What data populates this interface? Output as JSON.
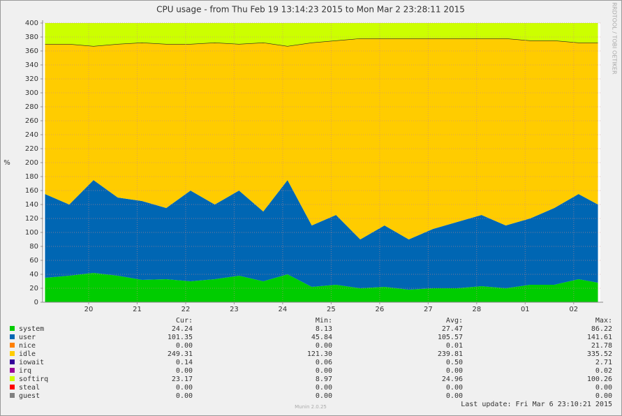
{
  "chart_data": {
    "type": "area",
    "title": "CPU usage - from Thu Feb 19 13:14:23 2015 to Mon Mar  2 23:28:11 2015",
    "y_label": "%",
    "side_text": "RRDTOOL / TOBI OETIKER",
    "footer": "Munin 2.0.25",
    "last_update": "Last update:  Fri Mar  6 23:10:21 2015",
    "stat_headers": [
      "Cur:",
      "Min:",
      "Avg:",
      "Max:"
    ],
    "stacked": true,
    "grid": true,
    "x": [
      19.1,
      19.6,
      20.1,
      20.6,
      21.1,
      21.6,
      22.1,
      22.6,
      23.1,
      23.6,
      24.1,
      24.6,
      25.1,
      25.6,
      26.1,
      26.6,
      27.1,
      27.6,
      28.1,
      28.6,
      29.1,
      29.6,
      30.1,
      30.5
    ],
    "xlim": [
      19.05,
      30.55
    ],
    "xticks": [
      20,
      21,
      22,
      23,
      24,
      25,
      26,
      27,
      28,
      {
        "value": 29,
        "label": "01"
      },
      {
        "value": 30,
        "label": "02"
      }
    ],
    "ylim": [
      0,
      400
    ],
    "yticks": [
      0,
      20,
      40,
      60,
      80,
      100,
      120,
      140,
      160,
      180,
      200,
      220,
      240,
      260,
      280,
      300,
      320,
      340,
      360,
      380,
      400
    ],
    "series": [
      {
        "name": "system",
        "color": "#00cc00",
        "stats": [
          "24.24",
          "8.13",
          "27.47",
          "86.22"
        ],
        "values": [
          35,
          38,
          42,
          38,
          32,
          33,
          30,
          33,
          38,
          30,
          40,
          22,
          25,
          20,
          22,
          18,
          20,
          20,
          23,
          20,
          25,
          25,
          33,
          28
        ]
      },
      {
        "name": "user",
        "color": "#0066b3",
        "stats": [
          "101.35",
          "45.84",
          "105.57",
          "141.61"
        ],
        "values": [
          120,
          102,
          133,
          112,
          113,
          102,
          130,
          107,
          122,
          100,
          135,
          88,
          100,
          70,
          88,
          72,
          85,
          95,
          102,
          90,
          95,
          110,
          122,
          112
        ]
      },
      {
        "name": "nice",
        "color": "#ff8000",
        "stats": [
          "0.00",
          "0.00",
          "0.01",
          "21.78"
        ],
        "values": [
          0,
          0,
          0,
          0,
          0,
          0,
          0,
          0,
          0,
          0,
          0,
          0,
          0,
          0,
          0,
          0,
          0,
          0,
          0,
          0,
          0,
          0,
          0,
          0
        ]
      },
      {
        "name": "idle",
        "color": "#ffcc00",
        "stats": [
          "249.31",
          "121.30",
          "239.81",
          "335.52"
        ],
        "values": [
          215,
          230,
          192,
          220,
          227,
          235,
          210,
          232,
          210,
          242,
          192,
          262,
          250,
          288,
          268,
          288,
          273,
          263,
          253,
          268,
          255,
          240,
          217,
          232
        ]
      },
      {
        "name": "iowait",
        "color": "#330099",
        "stats": [
          "0.14",
          "0.06",
          "0.50",
          "2.71"
        ],
        "values": [
          0,
          0,
          0,
          0,
          0,
          0,
          0,
          0,
          0,
          0,
          0,
          0,
          0,
          0,
          0,
          0,
          0,
          0,
          0,
          0,
          0,
          0,
          0,
          0
        ]
      },
      {
        "name": "irq",
        "color": "#990099",
        "stats": [
          "0.00",
          "0.00",
          "0.00",
          "0.02"
        ],
        "values": [
          0,
          0,
          0,
          0,
          0,
          0,
          0,
          0,
          0,
          0,
          0,
          0,
          0,
          0,
          0,
          0,
          0,
          0,
          0,
          0,
          0,
          0,
          0,
          0
        ]
      },
      {
        "name": "softirq",
        "color": "#ccff00",
        "stats": [
          "23.17",
          "8.97",
          "24.96",
          "100.26"
        ],
        "values": [
          30,
          30,
          33,
          30,
          28,
          30,
          30,
          28,
          30,
          28,
          33,
          28,
          25,
          22,
          22,
          22,
          22,
          22,
          22,
          22,
          25,
          25,
          28,
          28
        ]
      },
      {
        "name": "steal",
        "color": "#ff0000",
        "stats": [
          "0.00",
          "0.00",
          "0.00",
          "0.00"
        ],
        "values": [
          0,
          0,
          0,
          0,
          0,
          0,
          0,
          0,
          0,
          0,
          0,
          0,
          0,
          0,
          0,
          0,
          0,
          0,
          0,
          0,
          0,
          0,
          0,
          0
        ]
      },
      {
        "name": "guest",
        "color": "#808080",
        "stats": [
          "0.00",
          "0.00",
          "0.00",
          "0.00"
        ],
        "values": [
          0,
          0,
          0,
          0,
          0,
          0,
          0,
          0,
          0,
          0,
          0,
          0,
          0,
          0,
          0,
          0,
          0,
          0,
          0,
          0,
          0,
          0,
          0,
          0
        ]
      }
    ]
  }
}
